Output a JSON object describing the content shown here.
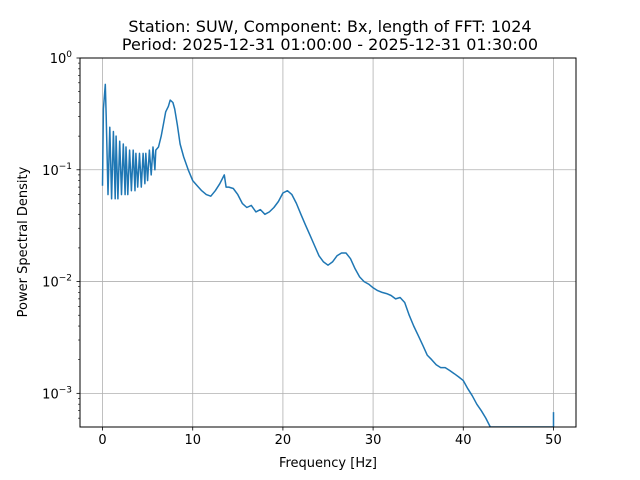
{
  "chart_data": {
    "type": "line",
    "title_line1": "Station: SUW, Component: Bx, length of FFT: 1024",
    "title_line2": "Period: 2025-12-31 01:00:00 - 2025-12-31 01:30:00",
    "xlabel": "Frequency [Hz]",
    "ylabel": "Power Spectral Density",
    "xlim": [
      -2.5,
      52.5
    ],
    "ylim": [
      0.0005,
      1
    ],
    "yscale": "log",
    "grid": true,
    "x_ticks": [
      0,
      10,
      20,
      30,
      40,
      50
    ],
    "x_tick_labels": [
      "0",
      "10",
      "20",
      "30",
      "40",
      "50"
    ],
    "y_ticks": [
      0.001,
      0.01,
      0.1,
      1
    ],
    "y_tick_bases": [
      "10",
      "10",
      "10",
      "10"
    ],
    "y_tick_exps": [
      "−3",
      "−2",
      "−1",
      "0"
    ],
    "line_color": "#1f77b4",
    "series": [
      {
        "x": [
          0.0,
          0.1,
          0.3,
          0.4,
          0.6,
          0.8,
          1.0,
          1.2,
          1.4,
          1.5,
          1.7,
          1.9,
          2.1,
          2.3,
          2.5,
          2.6,
          2.8,
          3.0,
          3.2,
          3.4,
          3.6,
          3.7,
          3.9,
          4.1,
          4.3,
          4.5,
          4.7,
          4.8,
          5.0,
          5.2,
          5.4,
          5.6,
          5.8,
          5.9,
          6.2,
          6.5,
          6.8,
          7.0,
          7.3,
          7.5,
          7.8,
          8.0,
          8.3,
          8.6,
          9.0,
          9.5,
          10.0,
          10.5,
          11.0,
          11.5,
          12.0,
          12.5,
          13.0,
          13.5,
          13.7,
          14.0,
          14.5,
          15.0,
          15.5,
          16.0,
          16.5,
          17.0,
          17.5,
          18.0,
          18.5,
          19.0,
          19.5,
          20.0,
          20.5,
          21.0,
          21.5,
          22.0,
          22.5,
          23.0,
          23.5,
          24.0,
          24.5,
          25.0,
          25.5,
          26.0,
          26.5,
          27.0,
          27.5,
          28.0,
          28.5,
          29.0,
          29.5,
          30.0,
          30.5,
          31.0,
          31.5,
          32.0,
          32.5,
          33.0,
          33.5,
          34.0,
          34.5,
          35.0,
          35.5,
          36.0,
          36.5,
          37.0,
          37.5,
          38.0,
          38.5,
          39.0,
          39.5,
          40.0,
          40.5,
          41.0,
          41.5,
          42.0,
          42.5,
          43.0,
          50.0,
          50.0
        ],
        "y": [
          0.072,
          0.35,
          0.58,
          0.3,
          0.06,
          0.24,
          0.055,
          0.22,
          0.055,
          0.2,
          0.055,
          0.18,
          0.06,
          0.17,
          0.06,
          0.16,
          0.06,
          0.15,
          0.065,
          0.15,
          0.065,
          0.14,
          0.07,
          0.14,
          0.07,
          0.14,
          0.075,
          0.14,
          0.08,
          0.15,
          0.09,
          0.16,
          0.1,
          0.15,
          0.16,
          0.2,
          0.27,
          0.33,
          0.37,
          0.42,
          0.4,
          0.35,
          0.25,
          0.17,
          0.13,
          0.1,
          0.08,
          0.072,
          0.065,
          0.06,
          0.058,
          0.065,
          0.075,
          0.09,
          0.07,
          0.07,
          0.068,
          0.06,
          0.05,
          0.046,
          0.048,
          0.042,
          0.044,
          0.04,
          0.042,
          0.046,
          0.052,
          0.062,
          0.065,
          0.06,
          0.05,
          0.04,
          0.032,
          0.026,
          0.021,
          0.017,
          0.015,
          0.014,
          0.015,
          0.017,
          0.018,
          0.018,
          0.016,
          0.013,
          0.011,
          0.01,
          0.0095,
          0.0088,
          0.0083,
          0.008,
          0.0078,
          0.0075,
          0.007,
          0.0072,
          0.0065,
          0.005,
          0.004,
          0.0033,
          0.0027,
          0.0022,
          0.002,
          0.0018,
          0.0017,
          0.0017,
          0.0016,
          0.0015,
          0.0014,
          0.0013,
          0.0011,
          0.00095,
          0.0008,
          0.0007,
          0.0006,
          0.0005,
          0.0005,
          0.00068
        ]
      }
    ]
  }
}
